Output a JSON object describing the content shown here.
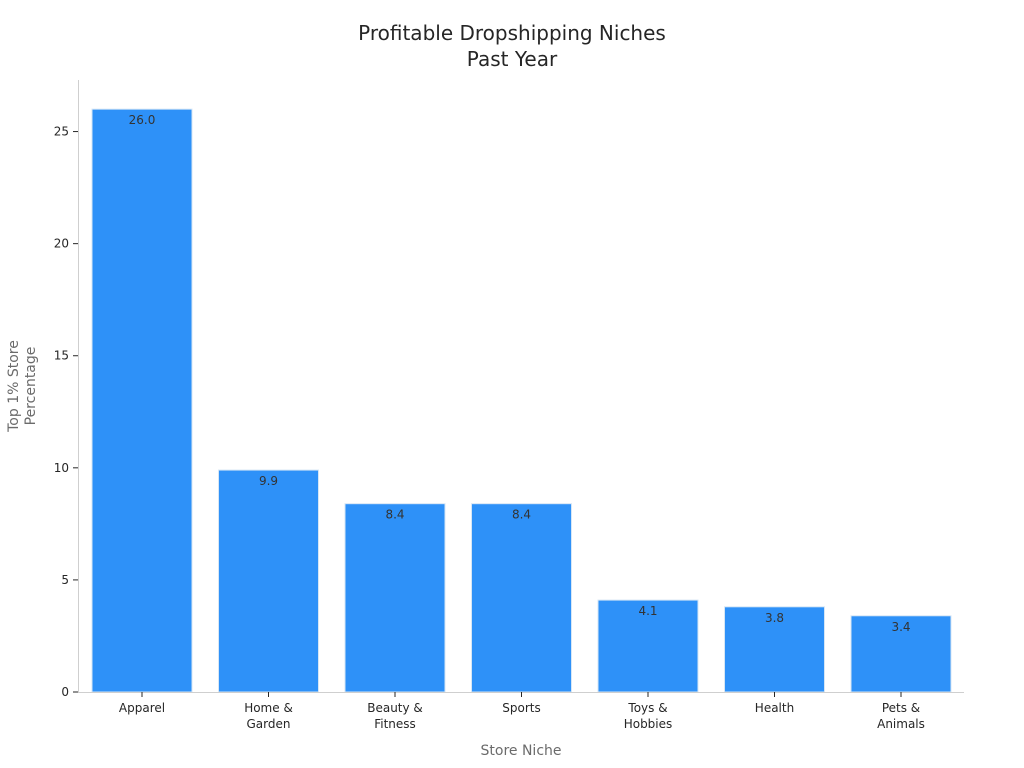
{
  "chart_data": {
    "type": "bar",
    "title": [
      "Profitable Dropshipping Niches",
      "Past Year"
    ],
    "xlabel": "Store Niche",
    "ylabel": [
      "Top 1% Store",
      "Percentage"
    ],
    "categories": [
      [
        "Apparel"
      ],
      [
        "Home &",
        "Garden"
      ],
      [
        "Beauty &",
        "Fitness"
      ],
      [
        "Sports"
      ],
      [
        "Toys &",
        "Hobbies"
      ],
      [
        "Health"
      ],
      [
        "Pets &",
        "Animals"
      ]
    ],
    "values": [
      26.0,
      9.9,
      8.4,
      8.4,
      4.1,
      3.8,
      3.4
    ],
    "data_labels": [
      "26.0",
      "9.9",
      "8.4",
      "8.4",
      "4.1",
      "3.8",
      "3.4"
    ],
    "ylim": [
      0,
      27.3
    ],
    "yticks": [
      0,
      5,
      10,
      15,
      20,
      25
    ],
    "bar_color": "#2e91f8",
    "grid": false,
    "legend": "none"
  }
}
